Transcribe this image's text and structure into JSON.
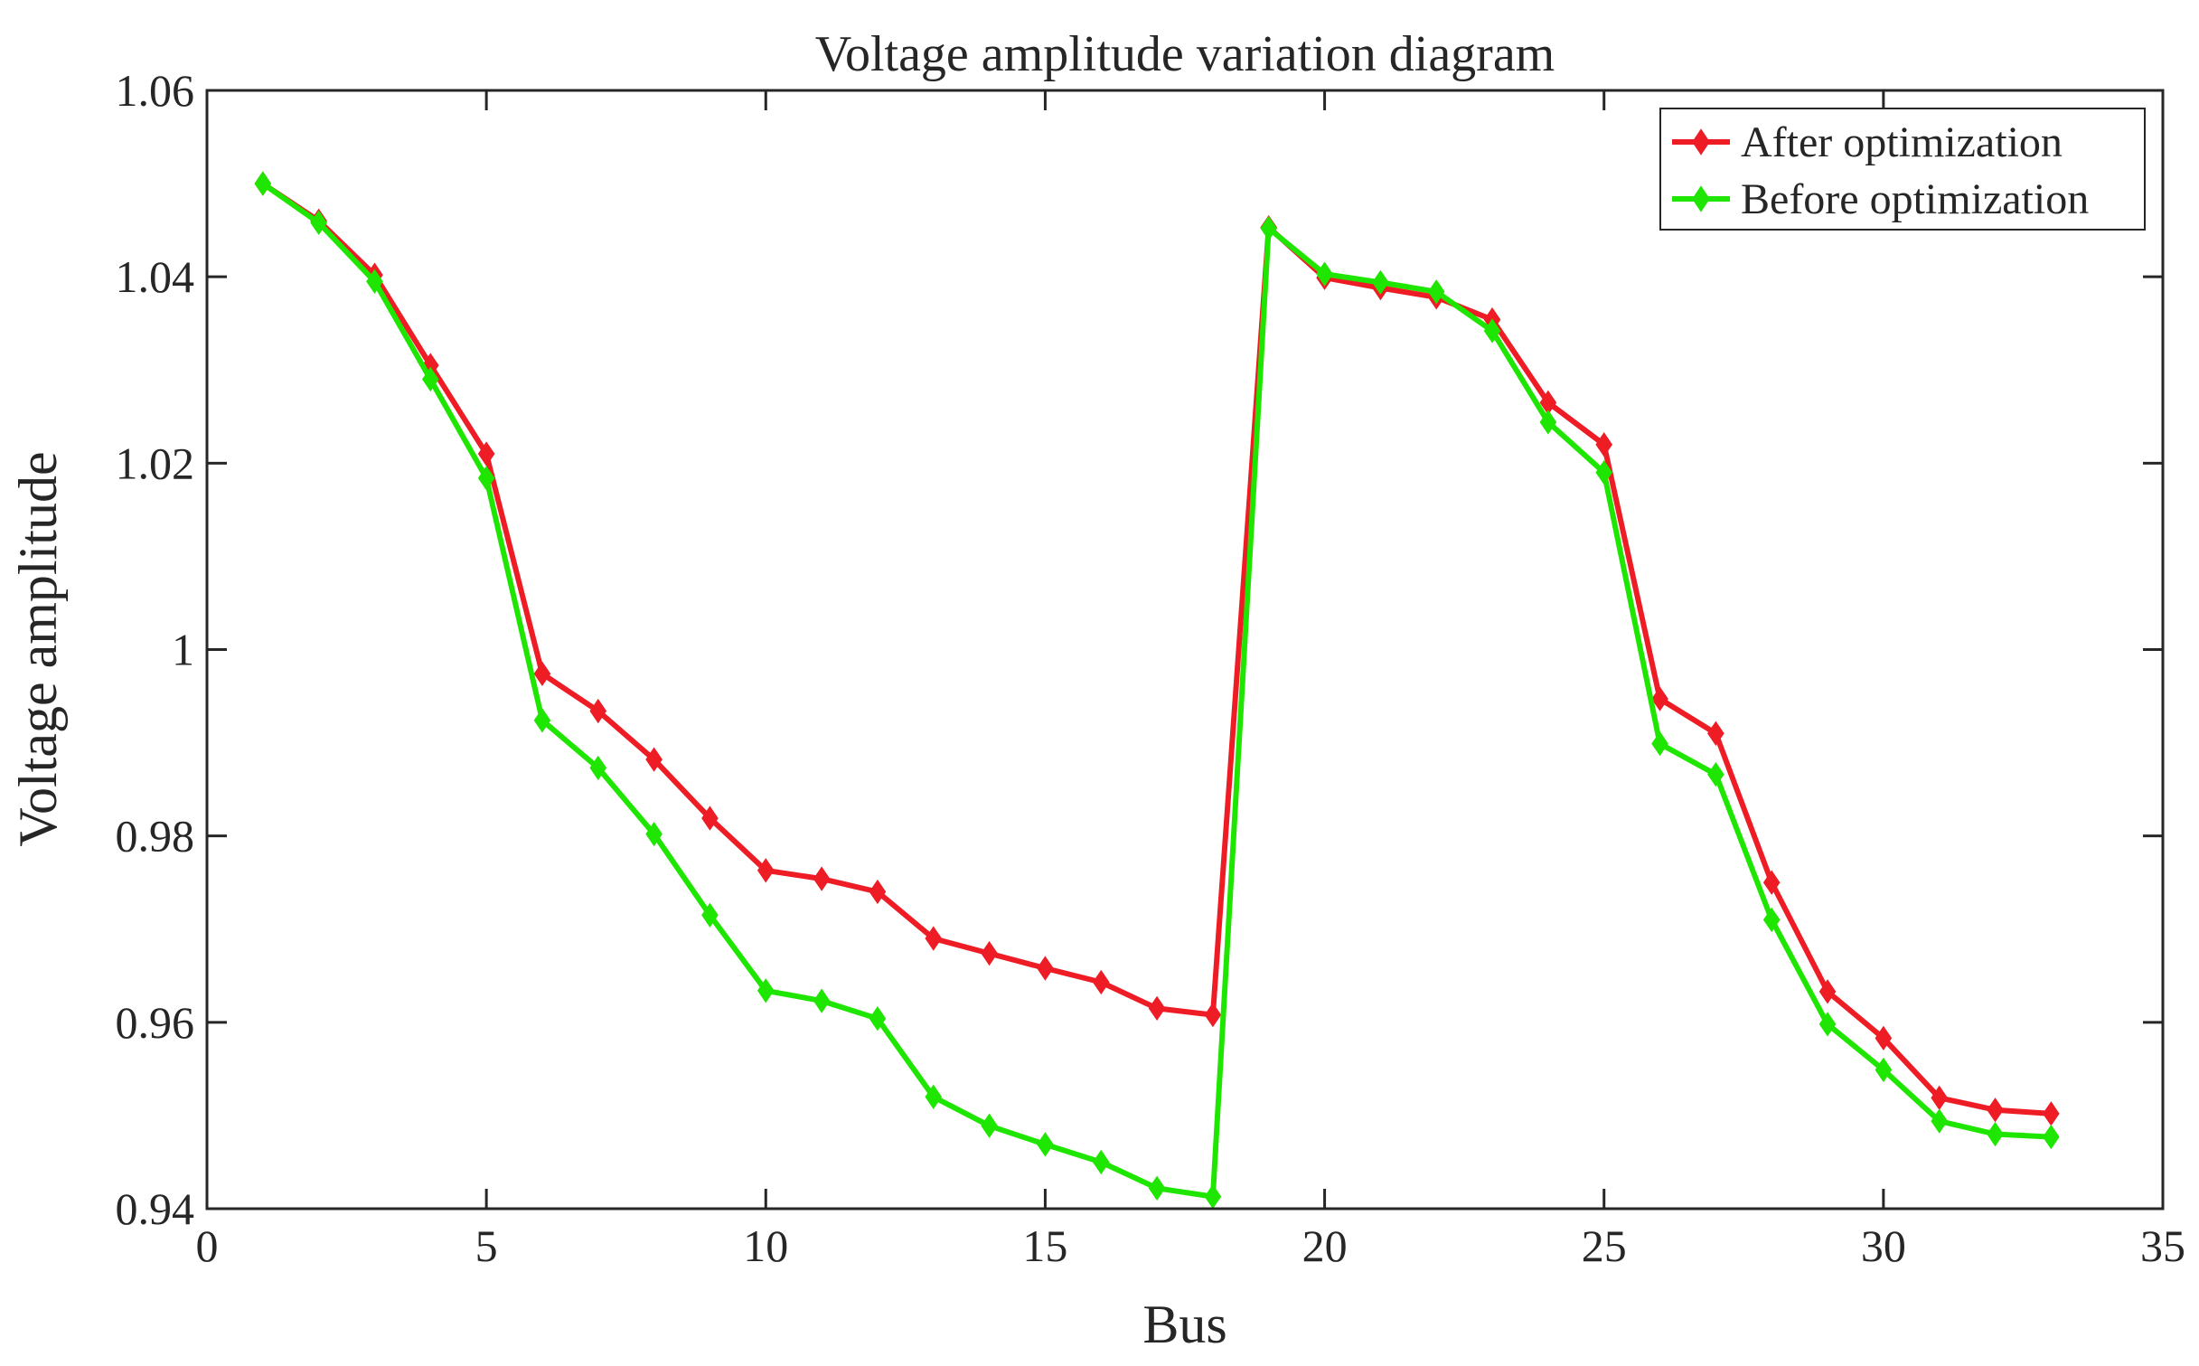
{
  "chart_data": {
    "type": "line",
    "title": "Voltage amplitude variation diagram",
    "xlabel": "Bus",
    "ylabel": "Voltage amplitude",
    "xlim": [
      0,
      35
    ],
    "ylim": [
      0.94,
      1.06
    ],
    "xticks": [
      0,
      5,
      10,
      15,
      20,
      25,
      30,
      35
    ],
    "xtick_labels": [
      "0",
      "5",
      "10",
      "15",
      "20",
      "25",
      "30",
      "35"
    ],
    "yticks": [
      0.94,
      0.96,
      0.98,
      1.0,
      1.02,
      1.04,
      1.06
    ],
    "ytick_labels": [
      "0.94",
      "0.96",
      "0.98",
      "1",
      "1.02",
      "1.04",
      "1.06"
    ],
    "legend_position": "top-right",
    "x": [
      1,
      2,
      3,
      4,
      5,
      6,
      7,
      8,
      9,
      10,
      11,
      12,
      13,
      14,
      15,
      16,
      17,
      18,
      19,
      20,
      21,
      22,
      23,
      24,
      25,
      26,
      27,
      28,
      29,
      30,
      31,
      32,
      33
    ],
    "series": [
      {
        "name": "After optimization",
        "color": "#ee1c25",
        "values": [
          1.05,
          1.046,
          1.0402,
          1.0305,
          1.021,
          0.9974,
          0.9934,
          0.9882,
          0.9819,
          0.9763,
          0.9754,
          0.974,
          0.969,
          0.9674,
          0.9658,
          0.9643,
          0.9615,
          0.9608,
          1.0453,
          1.0399,
          1.0388,
          1.0378,
          1.0354,
          1.0265,
          1.022,
          0.9947,
          0.991,
          0.975,
          0.9633,
          0.9583,
          0.9519,
          0.9506,
          0.9502
        ]
      },
      {
        "name": "Before optimization",
        "color": "#1fe600",
        "values": [
          1.05,
          1.0458,
          1.0395,
          1.029,
          1.0184,
          0.9924,
          0.9873,
          0.9802,
          0.9715,
          0.9634,
          0.9623,
          0.9604,
          0.952,
          0.9489,
          0.9469,
          0.945,
          0.9422,
          0.9413,
          1.0452,
          1.0403,
          1.0394,
          1.0384,
          1.0342,
          1.0244,
          1.019,
          0.9899,
          0.9866,
          0.971,
          0.9598,
          0.9549,
          0.9494,
          0.948,
          0.9477
        ]
      }
    ]
  }
}
